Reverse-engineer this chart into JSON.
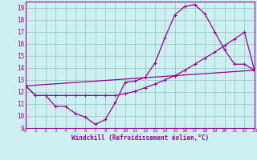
{
  "xlabel": "Windchill (Refroidissement éolien,°C)",
  "xlim": [
    0,
    23
  ],
  "ylim": [
    9,
    19.5
  ],
  "xticks": [
    0,
    1,
    2,
    3,
    4,
    5,
    6,
    7,
    8,
    9,
    10,
    11,
    12,
    13,
    14,
    15,
    16,
    17,
    18,
    19,
    20,
    21,
    22,
    23
  ],
  "yticks": [
    9,
    10,
    11,
    12,
    13,
    14,
    15,
    16,
    17,
    18,
    19
  ],
  "bg_color": "#cdf0f0",
  "line_color": "#990099",
  "grid_color": "#99cccc",
  "line1_x": [
    0,
    1,
    2,
    3,
    4,
    5,
    6,
    7,
    8,
    9,
    10,
    11,
    12,
    13,
    14,
    15,
    16,
    17,
    18,
    19,
    20,
    21,
    22,
    23
  ],
  "line1_y": [
    12.5,
    11.7,
    11.7,
    10.8,
    10.8,
    10.2,
    9.9,
    9.3,
    9.7,
    11.1,
    12.8,
    12.9,
    13.2,
    14.4,
    16.5,
    18.4,
    19.1,
    19.25,
    18.5,
    17.0,
    15.5,
    14.3,
    14.3,
    13.8
  ],
  "line2_x": [
    0,
    1,
    2,
    3,
    4,
    5,
    6,
    7,
    8,
    9,
    10,
    11,
    12,
    13,
    14,
    15,
    16,
    17,
    18,
    19,
    20,
    21,
    22,
    23
  ],
  "line2_y": [
    12.5,
    11.7,
    11.7,
    11.7,
    11.7,
    11.7,
    11.7,
    11.7,
    11.7,
    11.7,
    11.85,
    12.05,
    12.35,
    12.65,
    13.0,
    13.35,
    13.8,
    14.3,
    14.8,
    15.3,
    15.85,
    16.4,
    16.95,
    13.8
  ],
  "line3_x": [
    0,
    23
  ],
  "line3_y": [
    12.5,
    13.8
  ]
}
